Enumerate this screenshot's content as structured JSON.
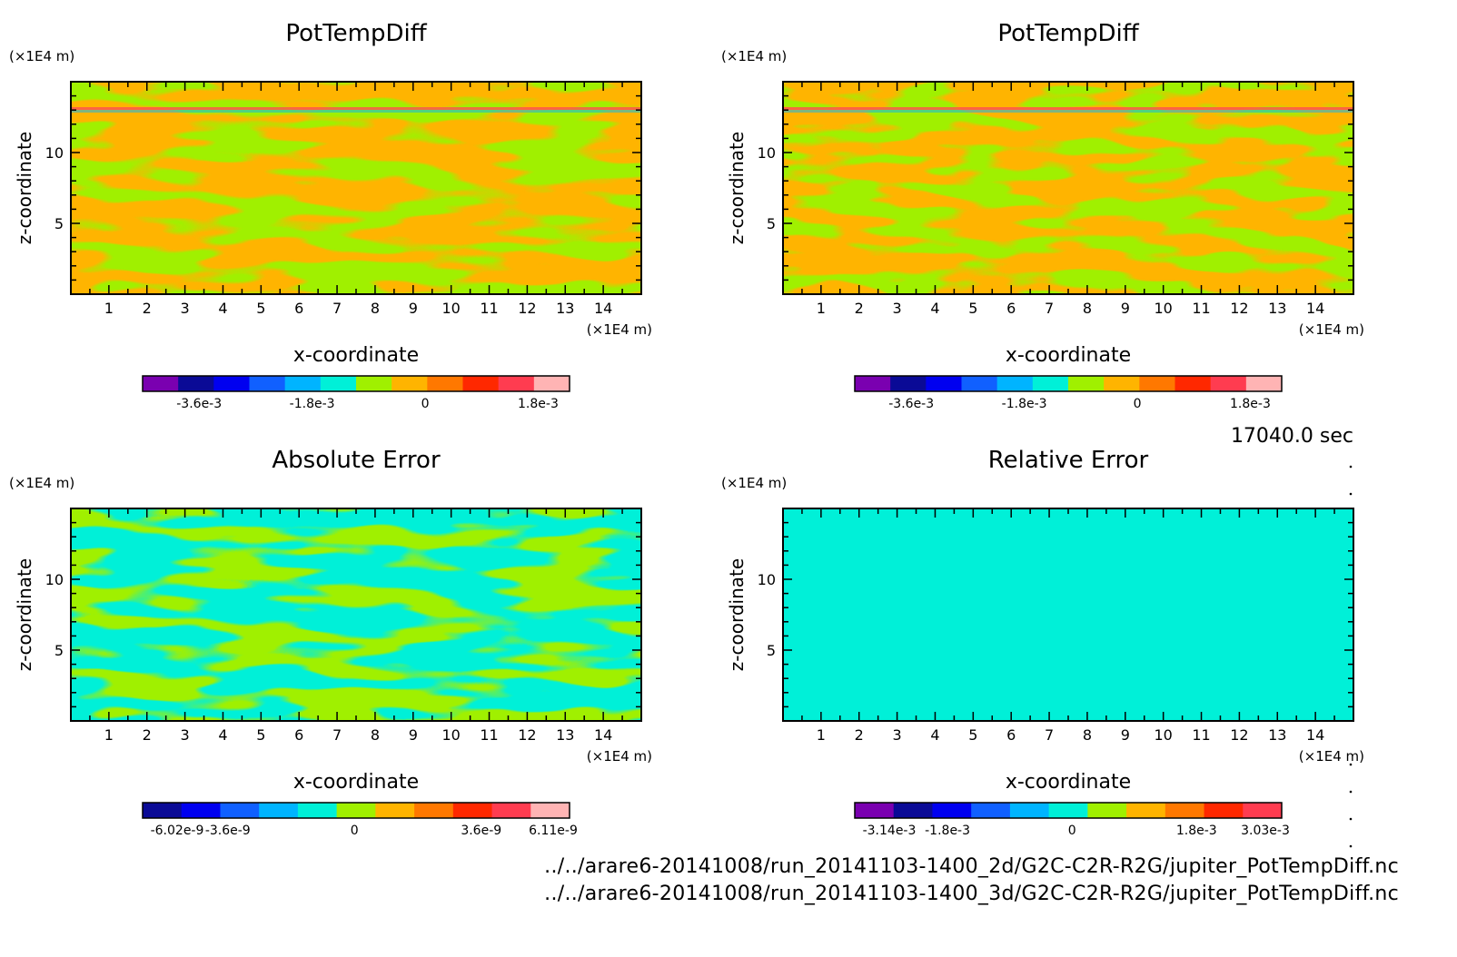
{
  "time_label": "17040.0 sec",
  "files": [
    "../../arare6-20141008/run_20141103-1400_2d/G2C-C2R-R2G/jupiter_PotTempDiff.nc",
    "../../arare6-20141008/run_20141103-1400_3d/G2C-C2R-R2G/jupiter_PotTempDiff.nc"
  ],
  "chart_data": [
    {
      "type": "heatmap",
      "title": "PotTempDiff",
      "xlabel": "x-coordinate",
      "ylabel": "z-coordinate",
      "x_unit": "(×1E4 m)",
      "y_unit": "(×1E4 m)",
      "xlim": [
        0,
        15
      ],
      "ylim": [
        0,
        15
      ],
      "xticks": [
        1,
        2,
        3,
        4,
        5,
        6,
        7,
        8,
        9,
        10,
        11,
        12,
        13,
        14
      ],
      "yticks": [
        5,
        10
      ],
      "pattern": "swirl",
      "colorbar": {
        "colors": [
          "#7a00b0",
          "#0a0a96",
          "#0000f0",
          "#1060ff",
          "#00b4ff",
          "#00f0d8",
          "#a0f000",
          "#ffb400",
          "#ff7800",
          "#ff2800",
          "#ff3c50",
          "#ffb4b4"
        ],
        "tick_labels": [
          "-3.6e-3",
          "-1.8e-3",
          "0",
          "1.8e-3"
        ],
        "tick_values": [
          -0.0036,
          -0.0018,
          0,
          0.0018
        ],
        "range": [
          -0.0045,
          0.0023
        ]
      },
      "dominant_colors": [
        "#ffb400",
        "#a0f000"
      ]
    },
    {
      "type": "heatmap",
      "title": "PotTempDiff",
      "xlabel": "x-coordinate",
      "ylabel": "z-coordinate",
      "x_unit": "(×1E4 m)",
      "y_unit": "(×1E4 m)",
      "xlim": [
        0,
        15
      ],
      "ylim": [
        0,
        15
      ],
      "xticks": [
        1,
        2,
        3,
        4,
        5,
        6,
        7,
        8,
        9,
        10,
        11,
        12,
        13,
        14
      ],
      "yticks": [
        5,
        10
      ],
      "pattern": "swirl",
      "colorbar": {
        "colors": [
          "#7a00b0",
          "#0a0a96",
          "#0000f0",
          "#1060ff",
          "#00b4ff",
          "#00f0d8",
          "#a0f000",
          "#ffb400",
          "#ff7800",
          "#ff2800",
          "#ff3c50",
          "#ffb4b4"
        ],
        "tick_labels": [
          "-3.6e-3",
          "-1.8e-3",
          "0",
          "1.8e-3"
        ],
        "tick_values": [
          -0.0036,
          -0.0018,
          0,
          0.0018
        ],
        "range": [
          -0.0045,
          0.0023
        ]
      },
      "dominant_colors": [
        "#ffb400",
        "#a0f000"
      ]
    },
    {
      "type": "heatmap",
      "title": "Absolute Error",
      "xlabel": "x-coordinate",
      "ylabel": "z-coordinate",
      "x_unit": "(×1E4 m)",
      "y_unit": "(×1E4 m)",
      "xlim": [
        0,
        15
      ],
      "ylim": [
        0,
        15
      ],
      "xticks": [
        1,
        2,
        3,
        4,
        5,
        6,
        7,
        8,
        9,
        10,
        11,
        12,
        13,
        14
      ],
      "yticks": [
        5,
        10
      ],
      "pattern": "swirl",
      "colorbar": {
        "colors": [
          "#0a0a96",
          "#0000f0",
          "#1060ff",
          "#00b4ff",
          "#00f0d8",
          "#a0f000",
          "#ffb400",
          "#ff7800",
          "#ff2800",
          "#ff3c50",
          "#ffb4b4"
        ],
        "tick_labels": [
          "-6.02e-9",
          "-3.6e-9",
          "0",
          "3.6e-9",
          "6.11e-9"
        ],
        "tick_values": [
          -6.02e-09,
          -3.6e-09,
          0,
          3.6e-09,
          6.11e-09
        ],
        "range": [
          -6.02e-09,
          6.11e-09
        ]
      },
      "dominant_colors": [
        "#00f0d8",
        "#a0f000"
      ]
    },
    {
      "type": "heatmap",
      "title": "Relative Error",
      "xlabel": "x-coordinate",
      "ylabel": "z-coordinate",
      "x_unit": "(×1E4 m)",
      "y_unit": "(×1E4 m)",
      "xlim": [
        0,
        15
      ],
      "ylim": [
        0,
        15
      ],
      "xticks": [
        1,
        2,
        3,
        4,
        5,
        6,
        7,
        8,
        9,
        10,
        11,
        12,
        13,
        14
      ],
      "yticks": [
        5,
        10
      ],
      "pattern": "noise",
      "colorbar": {
        "colors": [
          "#7a00b0",
          "#0a0a96",
          "#0000f0",
          "#1060ff",
          "#00b4ff",
          "#00f0d8",
          "#a0f000",
          "#ffb400",
          "#ff7800",
          "#ff2800",
          "#ff3c50"
        ],
        "tick_labels": [
          "-3.14e-3",
          "-1.8e-3",
          "0",
          "1.8e-3",
          "3.03e-3"
        ],
        "tick_values": [
          -0.00314,
          -0.0018,
          0,
          0.0018,
          0.00303
        ],
        "range": [
          -0.00314,
          0.00303
        ]
      },
      "dominant_colors": [
        "#00f0d8",
        "#a0f000"
      ]
    }
  ]
}
